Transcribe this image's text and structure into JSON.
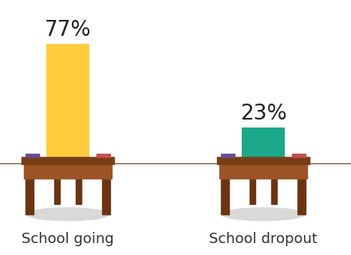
{
  "chart_data": {
    "type": "bar",
    "categories": [
      "School going",
      "School dropout"
    ],
    "values": [
      77,
      23
    ],
    "value_labels": [
      "77%",
      "23%"
    ],
    "colors": [
      "#ffcd3c",
      "#1ba98a"
    ],
    "data_labels": true,
    "tick_labels": "x"
  }
}
